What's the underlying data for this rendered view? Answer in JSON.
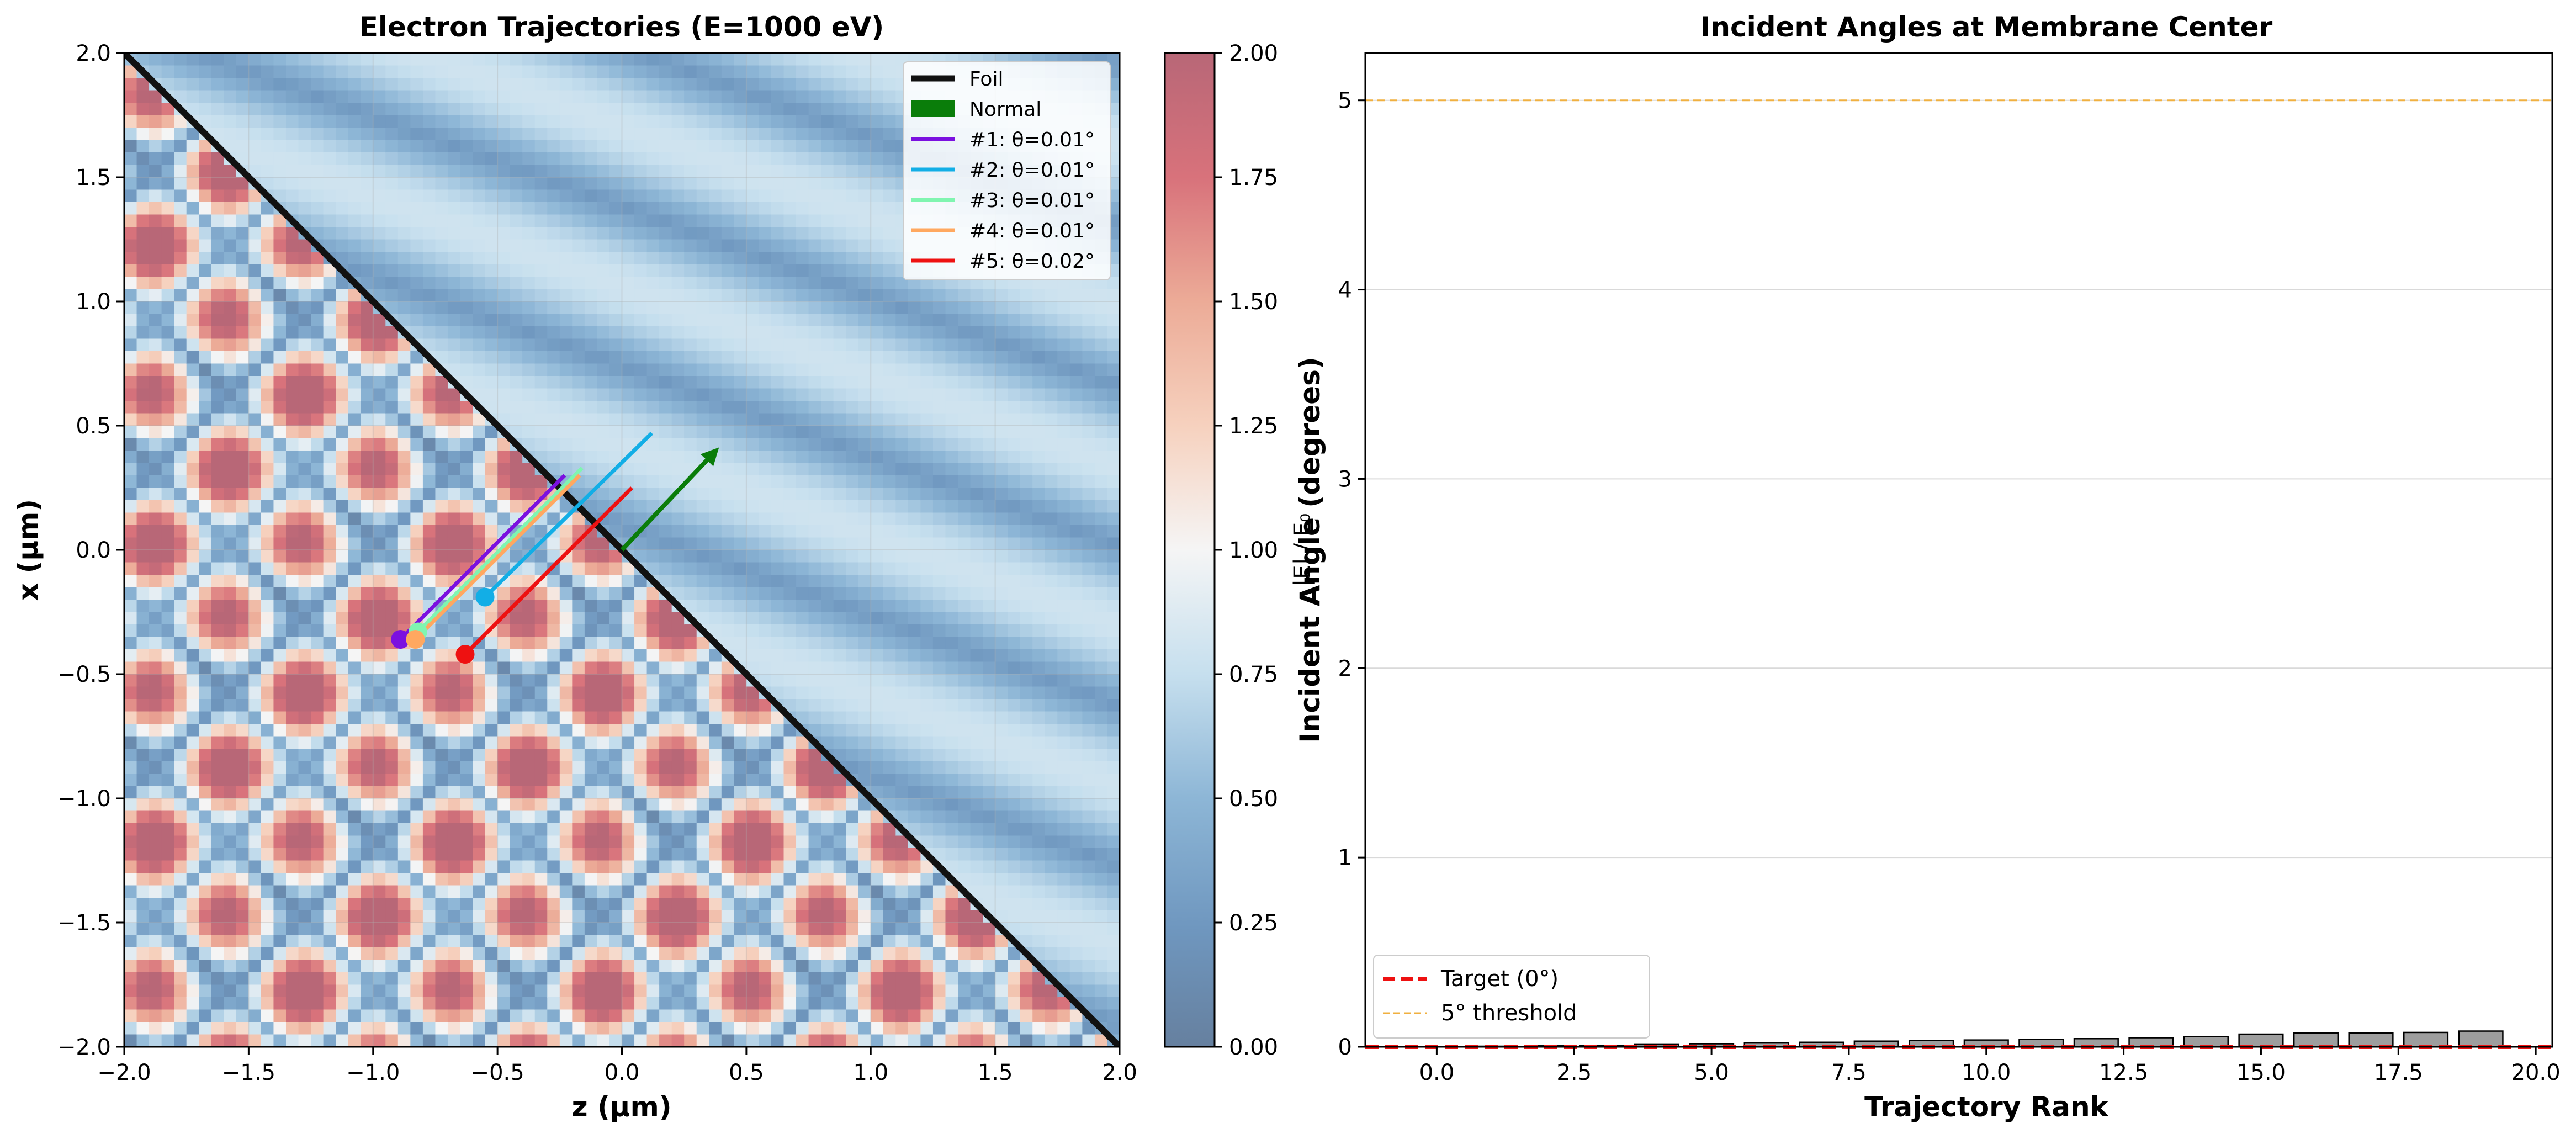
{
  "chart_data": [
    {
      "type": "heatmap",
      "title": "Electron Trajectories (E=1000 eV)",
      "xlabel": "z (µm)",
      "ylabel": "x (µm)",
      "xlim": [
        -2.0,
        2.0
      ],
      "ylim": [
        -2.0,
        2.0
      ],
      "xticks": [
        "−2.0",
        "−1.5",
        "−1.0",
        "−0.5",
        "0.0",
        "0.5",
        "1.0",
        "1.5",
        "2.0"
      ],
      "yticks": [
        "−2.0",
        "−1.5",
        "−1.0",
        "−0.5",
        "0.0",
        "0.5",
        "1.0",
        "1.5",
        "2.0"
      ],
      "grid": true,
      "colorbar": {
        "label": "|E| / E₀",
        "range": [
          0.0,
          2.0
        ],
        "ticks": [
          "0.00",
          "0.25",
          "0.50",
          "0.75",
          "1.00",
          "1.25",
          "1.50",
          "1.75",
          "2.00"
        ]
      },
      "foil": {
        "name": "Foil",
        "color": "#111111",
        "start": [
          -2.0,
          2.0
        ],
        "end": [
          2.0,
          -2.0
        ]
      },
      "normal": {
        "name": "Normal",
        "color": "#0a7d0a",
        "start": [
          0.0,
          0.0
        ],
        "end": [
          0.4,
          0.42
        ]
      },
      "trajectories": [
        {
          "name": "#1: θ=0.01°",
          "color": "#7b10e0",
          "start": [
            -0.89,
            -0.36
          ],
          "end": [
            -0.23,
            0.3
          ]
        },
        {
          "name": "#2: θ=0.01°",
          "color": "#12aee6",
          "start": [
            -0.55,
            -0.19
          ],
          "end": [
            0.12,
            0.47
          ]
        },
        {
          "name": "#3: θ=0.01°",
          "color": "#80f5b0",
          "start": [
            -0.82,
            -0.33
          ],
          "end": [
            -0.16,
            0.33
          ]
        },
        {
          "name": "#4: θ=0.01°",
          "color": "#ffa860",
          "start": [
            -0.83,
            -0.36
          ],
          "end": [
            -0.17,
            0.3
          ]
        },
        {
          "name": "#5: θ=0.02°",
          "color": "#ee1111",
          "start": [
            -0.63,
            -0.42
          ],
          "end": [
            0.04,
            0.25
          ]
        }
      ],
      "legend": "top-right"
    },
    {
      "type": "bar",
      "title": "Incident Angles at Membrane Center",
      "xlabel": "Trajectory Rank",
      "ylabel": "Incident Angle (degrees)",
      "xlim": [
        -1.3,
        20.3
      ],
      "ylim": [
        0,
        5.25
      ],
      "xticks": [
        "0.0",
        "2.5",
        "5.0",
        "7.5",
        "10.0",
        "12.5",
        "15.0",
        "17.5",
        "20.0"
      ],
      "yticks": [
        "0",
        "1",
        "2",
        "3",
        "4",
        "5"
      ],
      "x": [
        0,
        1,
        2,
        3,
        4,
        5,
        6,
        7,
        8,
        9,
        10,
        11,
        12,
        13,
        14,
        15,
        16,
        17,
        18,
        19,
        20
      ],
      "values": [
        0.002,
        0.003,
        0.005,
        0.007,
        0.012,
        0.016,
        0.02,
        0.024,
        0.03,
        0.034,
        0.036,
        0.04,
        0.043,
        0.048,
        0.054,
        0.067,
        0.073,
        0.073,
        0.076,
        0.083,
        0.0
      ],
      "bar_color": "#9e9e9e",
      "lines": [
        {
          "name": "Target (0°)",
          "y": 0,
          "color": "#ee1111",
          "style": "dashed"
        },
        {
          "name": "5° threshold",
          "y": 5,
          "color": "#f0b040",
          "style": "dashed"
        }
      ],
      "grid": "y",
      "legend": "bottom-left"
    }
  ]
}
